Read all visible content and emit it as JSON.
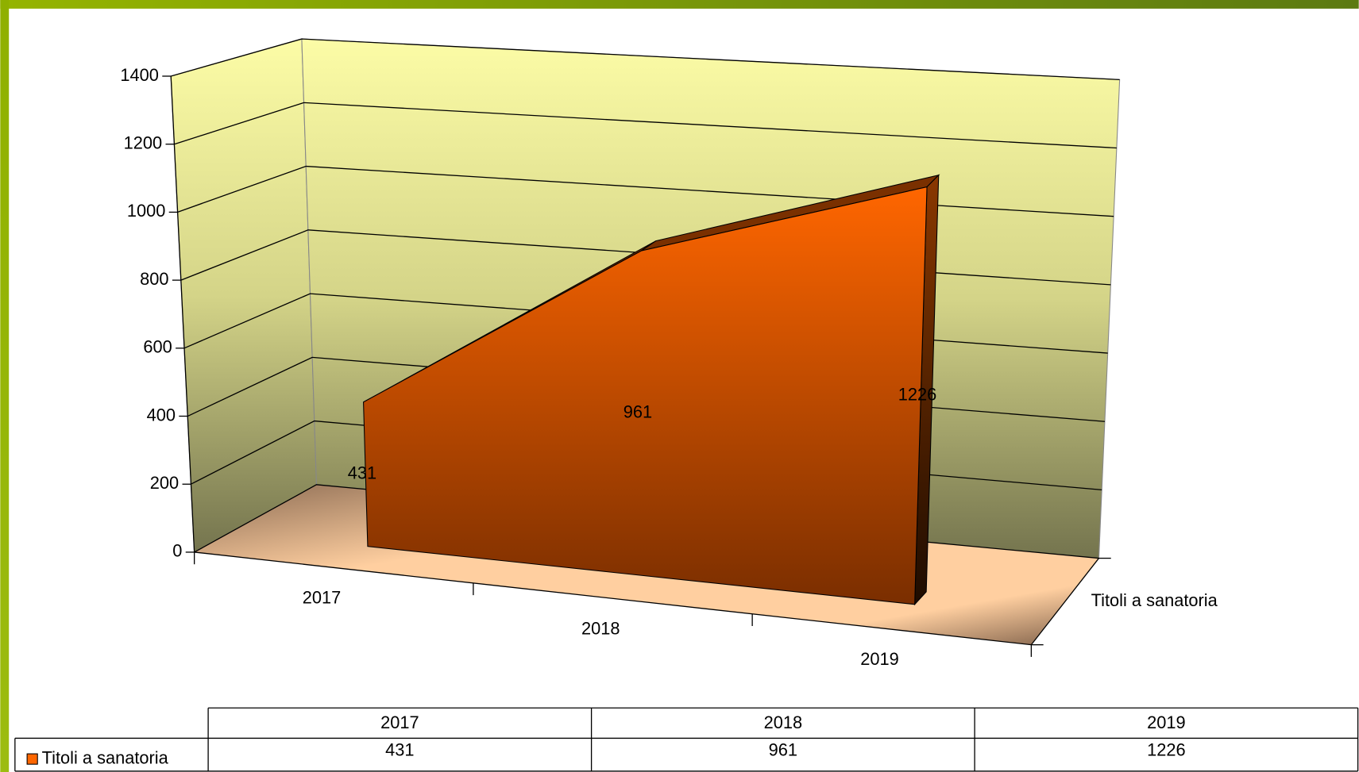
{
  "chart_data": {
    "type": "area3d",
    "categories": [
      "2017",
      "2018",
      "2019"
    ],
    "series": [
      {
        "name": "Titoli a sanatoria",
        "color": "#ff6600",
        "values": [
          431,
          961,
          1226
        ]
      }
    ],
    "ylim": [
      0,
      1400
    ],
    "yticks": [
      0,
      200,
      400,
      600,
      800,
      1000,
      1200,
      1400
    ],
    "grid": true,
    "data_table": true
  }
}
